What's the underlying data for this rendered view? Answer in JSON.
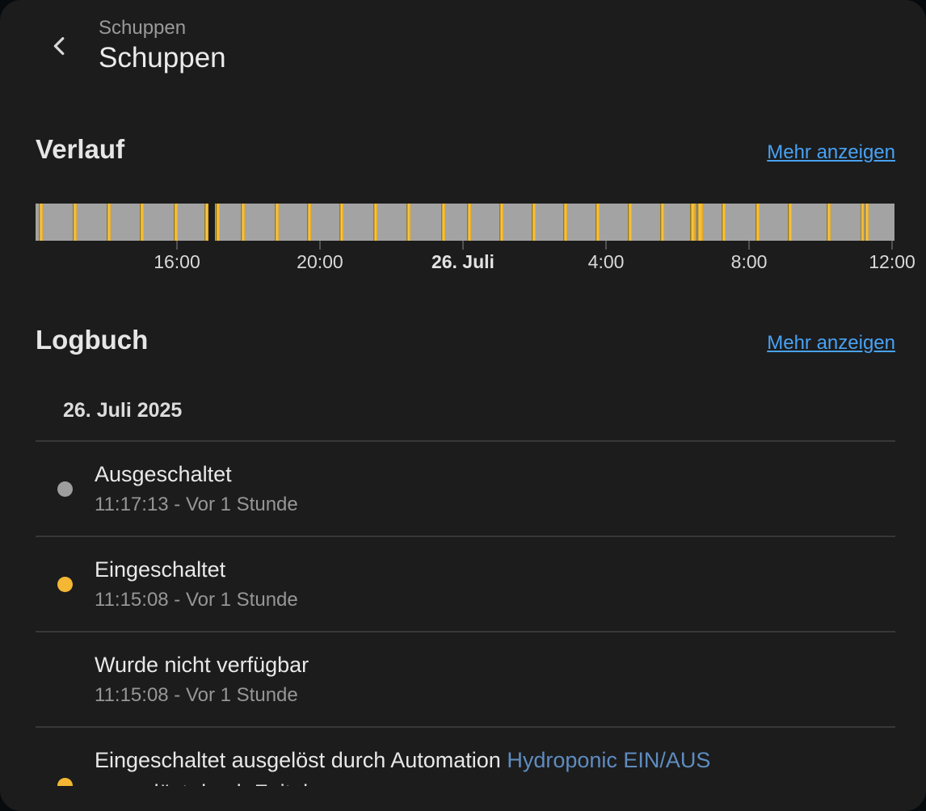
{
  "header": {
    "back_icon": "chevron-left",
    "breadcrumb": "Schuppen",
    "title": "Schuppen"
  },
  "history": {
    "heading": "Verlauf",
    "more_label": "Mehr anzeigen"
  },
  "logbook": {
    "heading": "Logbuch",
    "more_label": "Mehr anzeigen",
    "date_header": "26. Juli 2025",
    "entries": [
      {
        "dot_color": "#9e9e9e",
        "title": "Ausgeschaltet",
        "time": "11:17:13 - Vor 1 Stunde"
      },
      {
        "dot_color": "#f4b733",
        "title": "Eingeschaltet",
        "time": "11:15:08 - Vor 1 Stunde"
      },
      {
        "dot_color": "none",
        "title": "Wurde nicht verfügbar",
        "time": "11:15:08 - Vor 1 Stunde"
      },
      {
        "dot_color": "#f4b733",
        "partial": true,
        "title_parts": [
          {
            "text": "Eingeschaltet ausgelöst durch Automation "
          },
          {
            "text": "Hydroponic EIN/AUS",
            "link": true
          }
        ],
        "title_line2": "ausgelöst durch Zeitplan",
        "time": ""
      }
    ]
  },
  "chart_data": {
    "type": "timeline",
    "title": "Verlauf",
    "entity": "Schuppen",
    "x_range": [
      "25. Juli ~12:00",
      "26. Juli ~12:05"
    ],
    "x_ticks": [
      {
        "label": "16:00",
        "pos_pct": 16.46,
        "bold": false
      },
      {
        "label": "20:00",
        "pos_pct": 33.11,
        "bold": false
      },
      {
        "label": "26. Juli",
        "pos_pct": 49.76,
        "bold": true
      },
      {
        "label": "4:00",
        "pos_pct": 66.42,
        "bold": false
      },
      {
        "label": "8:00",
        "pos_pct": 83.07,
        "bold": false
      },
      {
        "label": "12:00",
        "pos_pct": 99.72,
        "bold": false
      }
    ],
    "state_colors": {
      "off": "#a3a3a3",
      "on_stripe": "#f2b029",
      "unavailable": "#1c1c1c"
    },
    "on_stripes": [
      {
        "pos_pct": 0.38,
        "w": 5
      },
      {
        "pos_pct": 4.33,
        "w": 5
      },
      {
        "pos_pct": 8.28,
        "w": 5
      },
      {
        "pos_pct": 12.14,
        "w": 5
      },
      {
        "pos_pct": 16.09,
        "w": 5
      },
      {
        "pos_pct": 19.7,
        "w": 5
      },
      {
        "pos_pct": 20.98,
        "w": 5
      },
      {
        "pos_pct": 23.89,
        "w": 5
      },
      {
        "pos_pct": 27.85,
        "w": 5
      },
      {
        "pos_pct": 31.61,
        "w": 5
      },
      {
        "pos_pct": 35.37,
        "w": 5
      },
      {
        "pos_pct": 39.32,
        "w": 5
      },
      {
        "pos_pct": 43.18,
        "w": 5
      },
      {
        "pos_pct": 47.22,
        "w": 5
      },
      {
        "pos_pct": 50.24,
        "w": 5
      },
      {
        "pos_pct": 54.0,
        "w": 5
      },
      {
        "pos_pct": 57.76,
        "w": 5
      },
      {
        "pos_pct": 61.43,
        "w": 5
      },
      {
        "pos_pct": 65.19,
        "w": 5
      },
      {
        "pos_pct": 68.96,
        "w": 5
      },
      {
        "pos_pct": 72.72,
        "w": 5
      },
      {
        "pos_pct": 76.2,
        "w": 6
      },
      {
        "pos_pct": 76.95,
        "w": 8
      },
      {
        "pos_pct": 79.87,
        "w": 5
      },
      {
        "pos_pct": 83.82,
        "w": 5
      },
      {
        "pos_pct": 87.58,
        "w": 5
      },
      {
        "pos_pct": 92.1,
        "w": 5
      },
      {
        "pos_pct": 96.05,
        "w": 4
      },
      {
        "pos_pct": 96.55,
        "w": 5
      }
    ],
    "unavailable_gaps": [
      {
        "pos_pct": 20.07,
        "w": 9
      }
    ]
  }
}
